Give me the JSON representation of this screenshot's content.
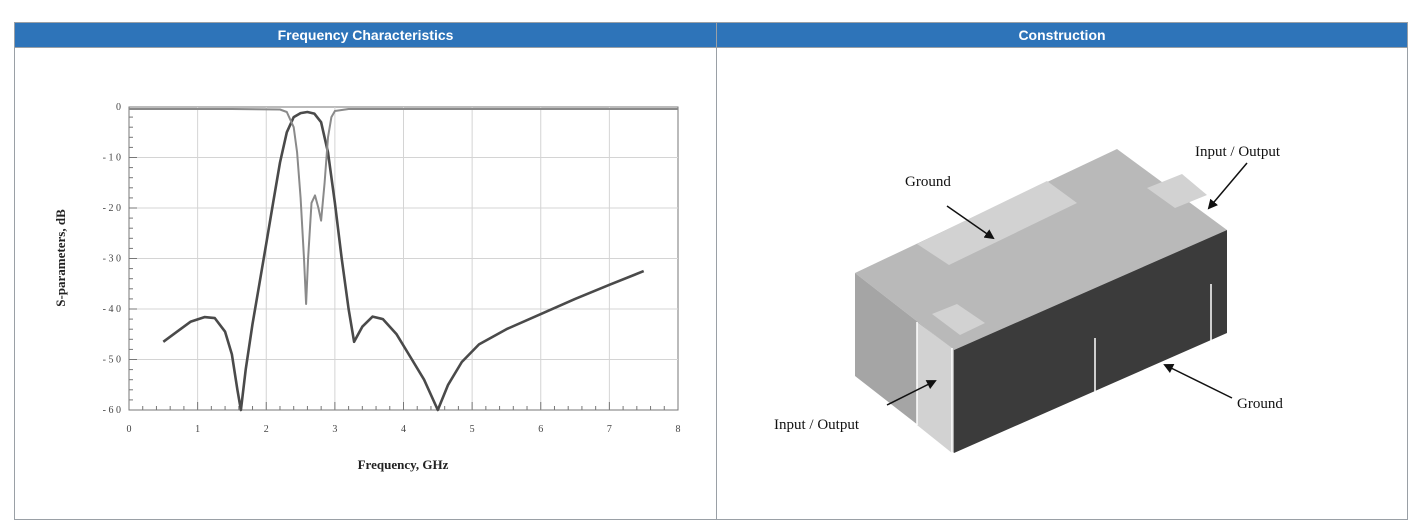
{
  "headers": {
    "left": "Frequency Characteristics",
    "right": "Construction"
  },
  "chart_data": {
    "type": "line",
    "xlabel": "Frequency, GHz",
    "ylabel": "S-parameters, dB",
    "xlim": [
      0,
      8
    ],
    "ylim": [
      -60,
      0
    ],
    "x_ticks": [
      "0",
      "1",
      "2",
      "3",
      "4",
      "5",
      "6",
      "7",
      "8"
    ],
    "y_ticks": [
      "0",
      "- 1 0",
      "- 2 0",
      "- 3 0",
      "- 4 0",
      "- 5 0",
      "- 6 0"
    ],
    "grid": true,
    "series": [
      {
        "color": "#4a4a4a",
        "points": [
          [
            0.5,
            -46.5
          ],
          [
            0.7,
            -44.5
          ],
          [
            0.9,
            -42.5
          ],
          [
            1.1,
            -41.6
          ],
          [
            1.25,
            -41.8
          ],
          [
            1.4,
            -44.5
          ],
          [
            1.5,
            -49
          ],
          [
            1.58,
            -56
          ],
          [
            1.63,
            -60
          ],
          [
            1.7,
            -52
          ],
          [
            1.8,
            -43
          ],
          [
            1.9,
            -35
          ],
          [
            2.0,
            -27
          ],
          [
            2.1,
            -19
          ],
          [
            2.2,
            -11
          ],
          [
            2.3,
            -5
          ],
          [
            2.4,
            -2
          ],
          [
            2.5,
            -1.2
          ],
          [
            2.6,
            -1
          ],
          [
            2.7,
            -1.3
          ],
          [
            2.8,
            -3
          ],
          [
            2.9,
            -9
          ],
          [
            3.0,
            -19
          ],
          [
            3.1,
            -30
          ],
          [
            3.2,
            -40
          ],
          [
            3.28,
            -46.5
          ],
          [
            3.4,
            -43.5
          ],
          [
            3.55,
            -41.5
          ],
          [
            3.7,
            -42
          ],
          [
            3.9,
            -45
          ],
          [
            4.1,
            -49.5
          ],
          [
            4.3,
            -54
          ],
          [
            4.5,
            -60
          ],
          [
            4.65,
            -55
          ],
          [
            4.85,
            -50.5
          ],
          [
            5.1,
            -47
          ],
          [
            5.5,
            -44
          ],
          [
            6.0,
            -41
          ],
          [
            6.5,
            -38
          ],
          [
            7.0,
            -35.2
          ],
          [
            7.5,
            -32.5
          ]
        ]
      },
      {
        "color": "#8a8a8a",
        "points": [
          [
            0,
            -0.4
          ],
          [
            1.5,
            -0.4
          ],
          [
            2.2,
            -0.5
          ],
          [
            2.3,
            -1
          ],
          [
            2.4,
            -4
          ],
          [
            2.45,
            -9
          ],
          [
            2.5,
            -18
          ],
          [
            2.55,
            -30
          ],
          [
            2.58,
            -39
          ],
          [
            2.61,
            -30
          ],
          [
            2.66,
            -19
          ],
          [
            2.71,
            -17.5
          ],
          [
            2.76,
            -20
          ],
          [
            2.8,
            -22.5
          ],
          [
            2.85,
            -15
          ],
          [
            2.9,
            -6
          ],
          [
            2.95,
            -2
          ],
          [
            3.0,
            -0.8
          ],
          [
            3.2,
            -0.4
          ],
          [
            5.0,
            -0.4
          ],
          [
            8.0,
            -0.4
          ]
        ]
      }
    ]
  },
  "construction": {
    "labels": {
      "ground_top": "Ground",
      "io_top": "Input / Output",
      "io_bottom": "Input / Output",
      "ground_bottom": "Ground"
    },
    "colors": {
      "top": "#b9b9b9",
      "pad": "#d2d2d2",
      "front": "#a5a5a5",
      "side": "#3b3b3b"
    }
  }
}
